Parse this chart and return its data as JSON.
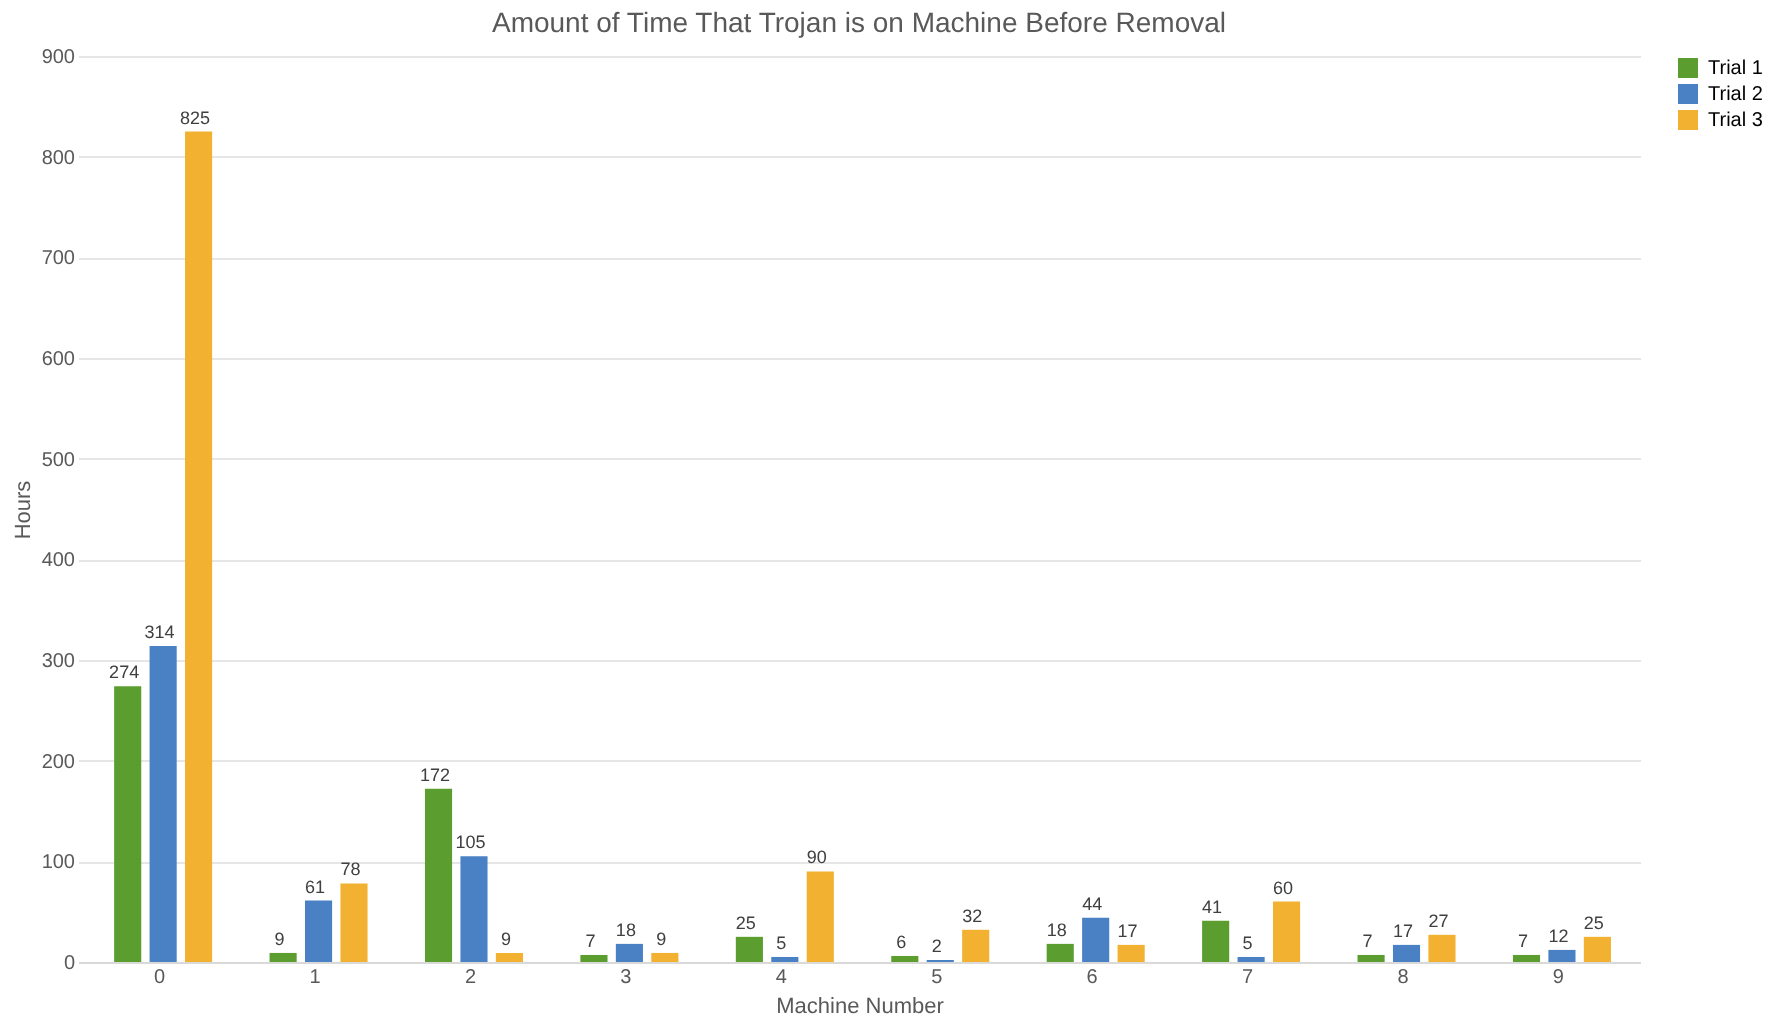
{
  "chart_data": {
    "type": "bar",
    "title": "Amount of Time That Trojan is on Machine Before Removal",
    "xlabel": "Machine Number",
    "ylabel": "Hours",
    "categories": [
      "0",
      "1",
      "2",
      "3",
      "4",
      "5",
      "6",
      "7",
      "8",
      "9"
    ],
    "series": [
      {
        "name": "Trial 1",
        "color": "#5b9e2f",
        "values": [
          274,
          9,
          172,
          7,
          25,
          6,
          18,
          41,
          7,
          7
        ]
      },
      {
        "name": "Trial 2",
        "color": "#4a80c4",
        "values": [
          314,
          61,
          105,
          18,
          5,
          2,
          44,
          5,
          17,
          12
        ]
      },
      {
        "name": "Trial 3",
        "color": "#f2b130",
        "values": [
          825,
          78,
          9,
          9,
          90,
          32,
          17,
          60,
          27,
          25
        ]
      }
    ],
    "ylim": [
      0,
      900
    ],
    "yticks": [
      0,
      100,
      200,
      300,
      400,
      500,
      600,
      700,
      800,
      900
    ],
    "grid": "y",
    "legend": "right",
    "data_labels": true
  }
}
